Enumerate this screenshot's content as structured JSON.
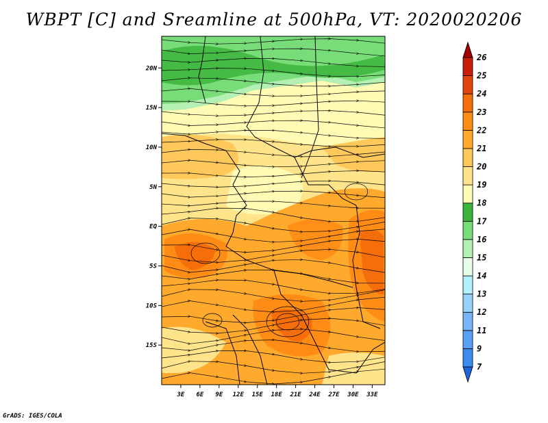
{
  "title": "WBPT [C] and Sreamline at 500hPa, VT: 2020020206",
  "footer": "GrADS: IGES/COLA",
  "map": {
    "lon_range": [
      0,
      35
    ],
    "lat_range": [
      -20,
      24
    ],
    "xticks": [
      {
        "lon": 3,
        "label": "3E"
      },
      {
        "lon": 6,
        "label": "6E"
      },
      {
        "lon": 9,
        "label": "9E"
      },
      {
        "lon": 12,
        "label": "12E"
      },
      {
        "lon": 15,
        "label": "15E"
      },
      {
        "lon": 18,
        "label": "18E"
      },
      {
        "lon": 21,
        "label": "21E"
      },
      {
        "lon": 24,
        "label": "24E"
      },
      {
        "lon": 27,
        "label": "27E"
      },
      {
        "lon": 30,
        "label": "30E"
      },
      {
        "lon": 33,
        "label": "33E"
      }
    ],
    "yticks": [
      {
        "lat": 20,
        "label": "20N"
      },
      {
        "lat": 15,
        "label": "15N"
      },
      {
        "lat": 10,
        "label": "10N"
      },
      {
        "lat": 5,
        "label": "5N"
      },
      {
        "lat": 0,
        "label": "EQ"
      },
      {
        "lat": -5,
        "label": "5S"
      },
      {
        "lat": -10,
        "label": "10S"
      },
      {
        "lat": -15,
        "label": "15S"
      }
    ]
  },
  "colorbar": {
    "labels": [
      "7",
      "9",
      "11",
      "12",
      "13",
      "14",
      "15",
      "16",
      "17",
      "18",
      "19",
      "20",
      "21",
      "22",
      "23",
      "24",
      "25",
      "26"
    ],
    "colors": [
      "#1e64dc",
      "#3c8cf0",
      "#5aa0f5",
      "#78b4fa",
      "#96d2fa",
      "#b4f0fa",
      "#e6ffe6",
      "#b4f0b4",
      "#78dc78",
      "#3cb43c",
      "#fffab4",
      "#ffe48c",
      "#ffc85a",
      "#ffaa2d",
      "#ff8c14",
      "#f56e0a",
      "#e1460a",
      "#c81e0a",
      "#a00000"
    ]
  },
  "layers": {
    "wbpt_fill": "Wet-bulb potential temperature shading",
    "streamlines": "500hPa streamlines",
    "borders": "Country borders"
  }
}
